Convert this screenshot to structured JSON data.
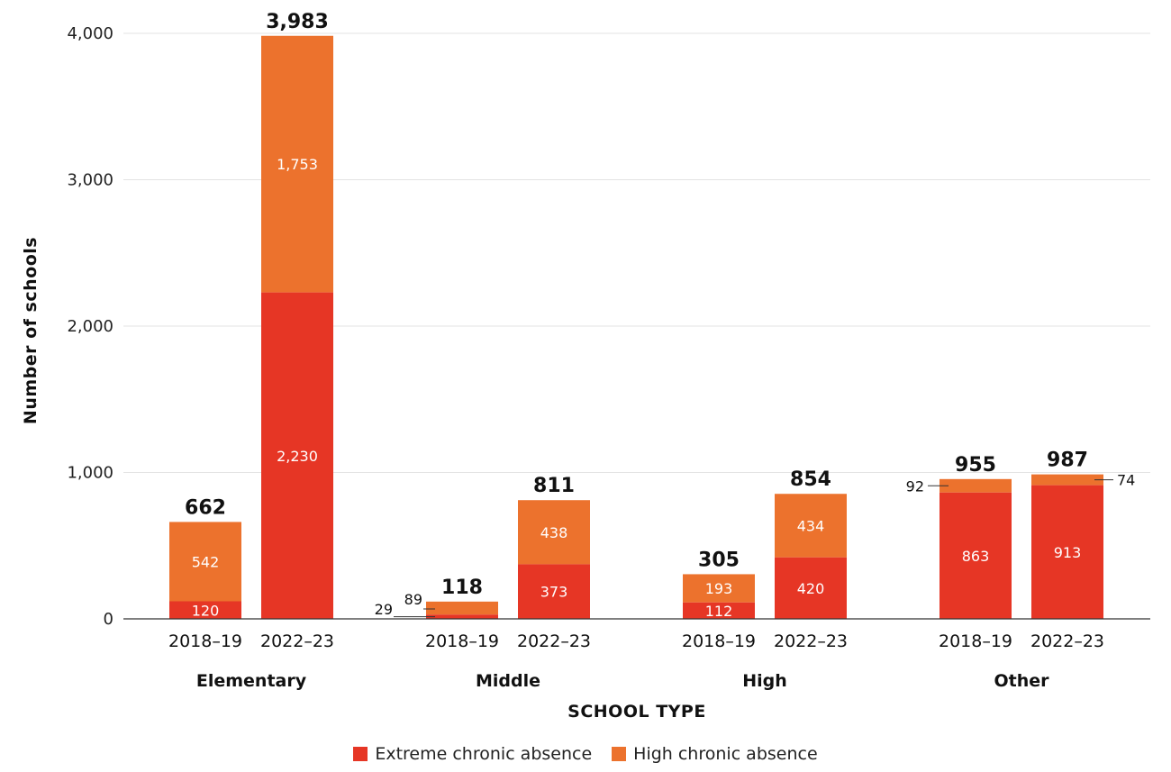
{
  "chart_data": {
    "type": "bar",
    "stacked": true,
    "ylabel": "Number of schools",
    "xlabel": "SCHOOL TYPE",
    "ylim": [
      0,
      4000
    ],
    "yticks": [
      0,
      1000,
      2000,
      3000,
      4000
    ],
    "ytick_labels": [
      "0",
      "1,000",
      "2,000",
      "3,000",
      "4,000"
    ],
    "grid": true,
    "legend_position": "bottom-center",
    "series": [
      {
        "name": "Extreme chronic absence",
        "color": "#e63625"
      },
      {
        "name": "High chronic absence",
        "color": "#ec722d"
      }
    ],
    "groups": [
      {
        "name": "Elementary",
        "bars": [
          {
            "period": "2018–19",
            "extreme": 120,
            "high": 542,
            "extreme_label": "120",
            "high_label": "542",
            "total_label": "662"
          },
          {
            "period": "2022–23",
            "extreme": 2230,
            "high": 1753,
            "extreme_label": "2,230",
            "high_label": "1,753",
            "total_label": "3,983"
          }
        ]
      },
      {
        "name": "Middle",
        "bars": [
          {
            "period": "2018–19",
            "extreme": 29,
            "high": 89,
            "extreme_label": "29",
            "high_label": "89",
            "total_label": "118",
            "labels_outside": true
          },
          {
            "period": "2022–23",
            "extreme": 373,
            "high": 438,
            "extreme_label": "373",
            "high_label": "438",
            "total_label": "811"
          }
        ]
      },
      {
        "name": "High",
        "bars": [
          {
            "period": "2018–19",
            "extreme": 112,
            "high": 193,
            "extreme_label": "112",
            "high_label": "193",
            "total_label": "305"
          },
          {
            "period": "2022–23",
            "extreme": 420,
            "high": 434,
            "extreme_label": "420",
            "high_label": "434",
            "total_label": "854"
          }
        ]
      },
      {
        "name": "Other",
        "bars": [
          {
            "period": "2018–19",
            "extreme": 863,
            "high": 92,
            "extreme_label": "863",
            "high_label": "92",
            "total_label": "955",
            "high_outside": "left"
          },
          {
            "period": "2022–23",
            "extreme": 913,
            "high": 74,
            "extreme_label": "913",
            "high_label": "74",
            "total_label": "987",
            "high_outside": "right"
          }
        ]
      }
    ]
  }
}
